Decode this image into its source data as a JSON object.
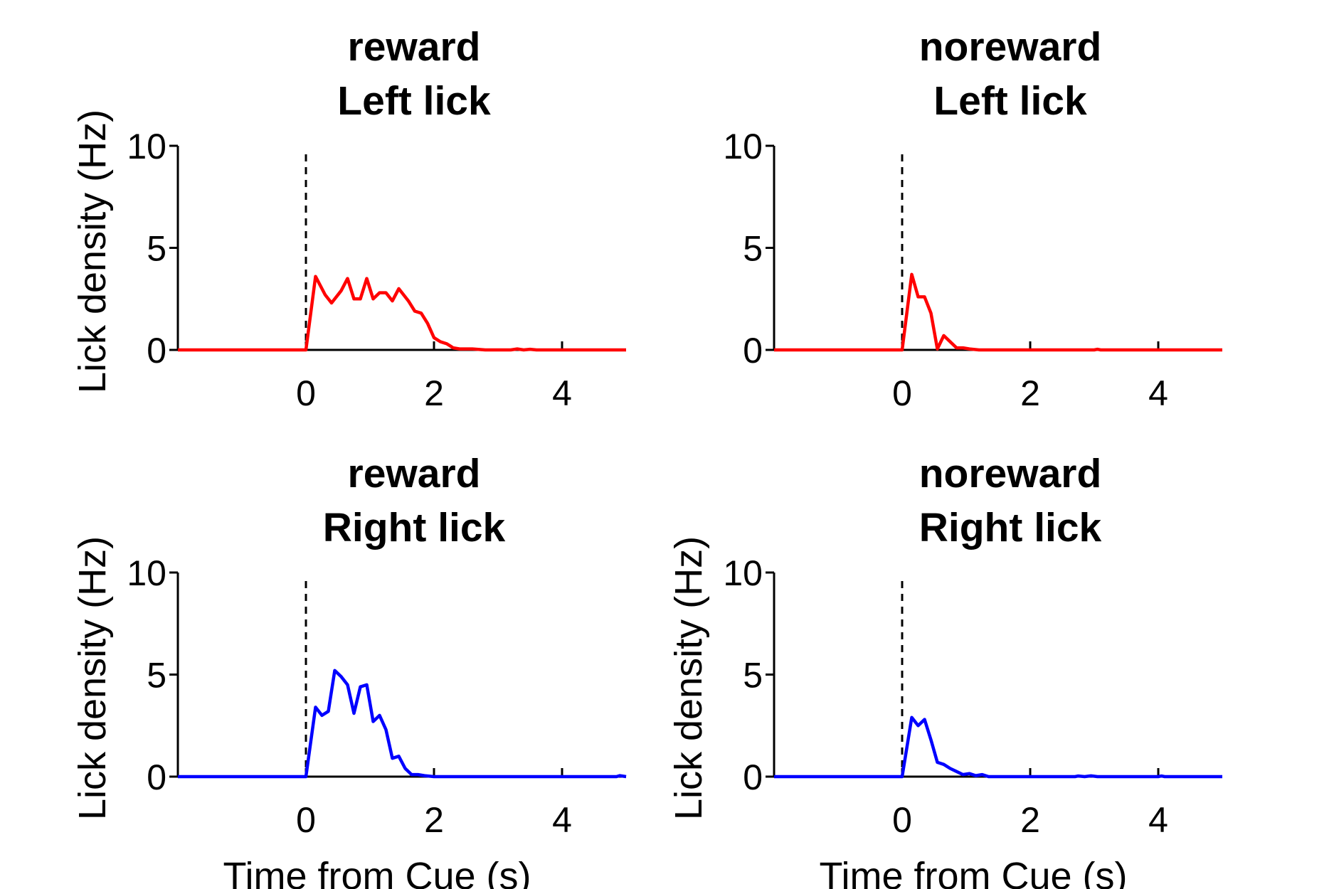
{
  "figure": {
    "background": "#ffffff",
    "panel_count": 4,
    "layout": "2x2 grid"
  },
  "chart_data": [
    {
      "type": "line",
      "title": [
        "reward",
        "Left lick"
      ],
      "xlabel": "",
      "ylabel": "Lick density (Hz)",
      "xlim": [
        -2,
        5
      ],
      "ylim": [
        0,
        10
      ],
      "xticks": [
        0,
        2,
        4
      ],
      "xtick_labels": [
        "0",
        "2",
        "4"
      ],
      "yticks": [
        0,
        5,
        10
      ],
      "ytick_labels": [
        "0",
        "5",
        "10"
      ],
      "cue_marker_x": 0,
      "grid": false,
      "series": [
        {
          "color": "#ff0000",
          "points": [
            [
              -2,
              0
            ],
            [
              -1,
              0
            ],
            [
              -0.5,
              0
            ],
            [
              0,
              0
            ],
            [
              0.15,
              3.6
            ],
            [
              0.3,
              2.7
            ],
            [
              0.4,
              2.3
            ],
            [
              0.55,
              2.9
            ],
            [
              0.65,
              3.5
            ],
            [
              0.75,
              2.5
            ],
            [
              0.85,
              2.5
            ],
            [
              0.95,
              3.5
            ],
            [
              1.05,
              2.5
            ],
            [
              1.15,
              2.8
            ],
            [
              1.25,
              2.8
            ],
            [
              1.35,
              2.4
            ],
            [
              1.45,
              3.0
            ],
            [
              1.6,
              2.4
            ],
            [
              1.7,
              1.9
            ],
            [
              1.8,
              1.8
            ],
            [
              1.9,
              1.3
            ],
            [
              2.0,
              0.6
            ],
            [
              2.1,
              0.4
            ],
            [
              2.2,
              0.3
            ],
            [
              2.3,
              0.1
            ],
            [
              2.4,
              0.05
            ],
            [
              2.6,
              0.05
            ],
            [
              2.8,
              0
            ],
            [
              3.0,
              0
            ],
            [
              3.2,
              0
            ],
            [
              3.3,
              0.05
            ],
            [
              3.4,
              0
            ],
            [
              3.5,
              0.03
            ],
            [
              3.6,
              0
            ],
            [
              4,
              0
            ],
            [
              5,
              0
            ]
          ]
        }
      ]
    },
    {
      "type": "line",
      "title": [
        "noreward",
        "Left lick"
      ],
      "xlabel": "",
      "ylabel": "",
      "xlim": [
        -2,
        5
      ],
      "ylim": [
        0,
        10
      ],
      "xticks": [
        0,
        2,
        4
      ],
      "xtick_labels": [
        "0",
        "2",
        "4"
      ],
      "yticks": [
        0,
        5,
        10
      ],
      "ytick_labels": [
        "0",
        "5",
        "10"
      ],
      "cue_marker_x": 0,
      "grid": false,
      "series": [
        {
          "color": "#ff0000",
          "points": [
            [
              -2,
              0
            ],
            [
              -1,
              0
            ],
            [
              0,
              0
            ],
            [
              0.15,
              3.7
            ],
            [
              0.25,
              2.6
            ],
            [
              0.35,
              2.6
            ],
            [
              0.45,
              1.8
            ],
            [
              0.55,
              0.05
            ],
            [
              0.65,
              0.7
            ],
            [
              0.75,
              0.4
            ],
            [
              0.85,
              0.1
            ],
            [
              0.95,
              0.1
            ],
            [
              1.05,
              0.05
            ],
            [
              1.2,
              0
            ],
            [
              2,
              0
            ],
            [
              3,
              0
            ],
            [
              3.05,
              0.03
            ],
            [
              3.1,
              0
            ],
            [
              5,
              0
            ]
          ]
        }
      ]
    },
    {
      "type": "line",
      "title": [
        "reward",
        "Right lick"
      ],
      "xlabel": "Time from Cue (s)",
      "ylabel": "Lick density (Hz)",
      "xlim": [
        -2,
        5
      ],
      "ylim": [
        0,
        10
      ],
      "xticks": [
        0,
        2,
        4
      ],
      "xtick_labels": [
        "0",
        "2",
        "4"
      ],
      "yticks": [
        0,
        5,
        10
      ],
      "ytick_labels": [
        "0",
        "5",
        "10"
      ],
      "cue_marker_x": 0,
      "grid": false,
      "series": [
        {
          "color": "#0000ff",
          "points": [
            [
              -2,
              0
            ],
            [
              -1,
              0
            ],
            [
              0,
              0
            ],
            [
              0.15,
              3.4
            ],
            [
              0.25,
              3.0
            ],
            [
              0.35,
              3.2
            ],
            [
              0.45,
              5.2
            ],
            [
              0.55,
              4.9
            ],
            [
              0.65,
              4.5
            ],
            [
              0.75,
              3.1
            ],
            [
              0.85,
              4.4
            ],
            [
              0.95,
              4.5
            ],
            [
              1.05,
              2.7
            ],
            [
              1.15,
              3.0
            ],
            [
              1.25,
              2.3
            ],
            [
              1.35,
              0.9
            ],
            [
              1.45,
              1.0
            ],
            [
              1.55,
              0.4
            ],
            [
              1.65,
              0.1
            ],
            [
              1.75,
              0.1
            ],
            [
              1.85,
              0.05
            ],
            [
              2.0,
              0
            ],
            [
              3,
              0
            ],
            [
              4,
              0
            ],
            [
              4.85,
              0
            ],
            [
              4.9,
              0.05
            ],
            [
              5,
              0
            ]
          ]
        }
      ]
    },
    {
      "type": "line",
      "title": [
        "noreward",
        "Right lick"
      ],
      "xlabel": "Time from Cue (s)",
      "ylabel": "Lick density (Hz)",
      "xlim": [
        -2,
        5
      ],
      "ylim": [
        0,
        10
      ],
      "xticks": [
        0,
        2,
        4
      ],
      "xtick_labels": [
        "0",
        "2",
        "4"
      ],
      "yticks": [
        0,
        5,
        10
      ],
      "ytick_labels": [
        "0",
        "5",
        "10"
      ],
      "cue_marker_x": 0,
      "grid": false,
      "series": [
        {
          "color": "#0000ff",
          "points": [
            [
              -2,
              0
            ],
            [
              -1,
              0
            ],
            [
              0,
              0
            ],
            [
              0.15,
              2.9
            ],
            [
              0.25,
              2.5
            ],
            [
              0.35,
              2.8
            ],
            [
              0.45,
              1.8
            ],
            [
              0.55,
              0.7
            ],
            [
              0.65,
              0.6
            ],
            [
              0.75,
              0.4
            ],
            [
              0.85,
              0.25
            ],
            [
              0.95,
              0.1
            ],
            [
              1.05,
              0.15
            ],
            [
              1.15,
              0.05
            ],
            [
              1.25,
              0.1
            ],
            [
              1.35,
              0
            ],
            [
              2,
              0
            ],
            [
              2.7,
              0
            ],
            [
              2.75,
              0.03
            ],
            [
              2.85,
              0
            ],
            [
              2.95,
              0.04
            ],
            [
              3.05,
              0
            ],
            [
              4,
              0
            ],
            [
              4.05,
              0.03
            ],
            [
              4.1,
              0
            ],
            [
              5,
              0
            ]
          ]
        }
      ]
    }
  ]
}
